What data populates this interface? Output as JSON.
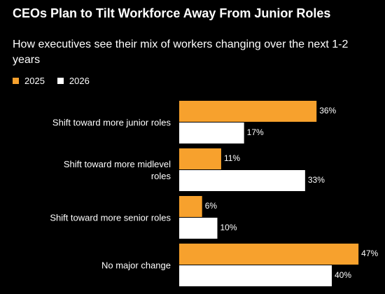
{
  "chart_data": {
    "type": "bar",
    "orientation": "horizontal",
    "title": "CEOs Plan to Tilt Workforce Away From Junior Roles",
    "subtitle": "How executives see their mix of workers changing over the next 1-2 years",
    "categories": [
      "Shift toward more junior roles",
      "Shift toward more midlevel roles",
      "Shift toward more senior roles",
      "No major change"
    ],
    "series": [
      {
        "name": "2025",
        "color": "#f7a12d",
        "values": [
          36,
          11,
          6,
          47
        ],
        "value_labels": [
          "36%",
          "11%",
          "6%",
          "47%"
        ]
      },
      {
        "name": "2026",
        "color": "#ffffff",
        "values": [
          17,
          33,
          10,
          40
        ],
        "value_labels": [
          "17%",
          "33%",
          "10%",
          "40%"
        ]
      }
    ]
  }
}
